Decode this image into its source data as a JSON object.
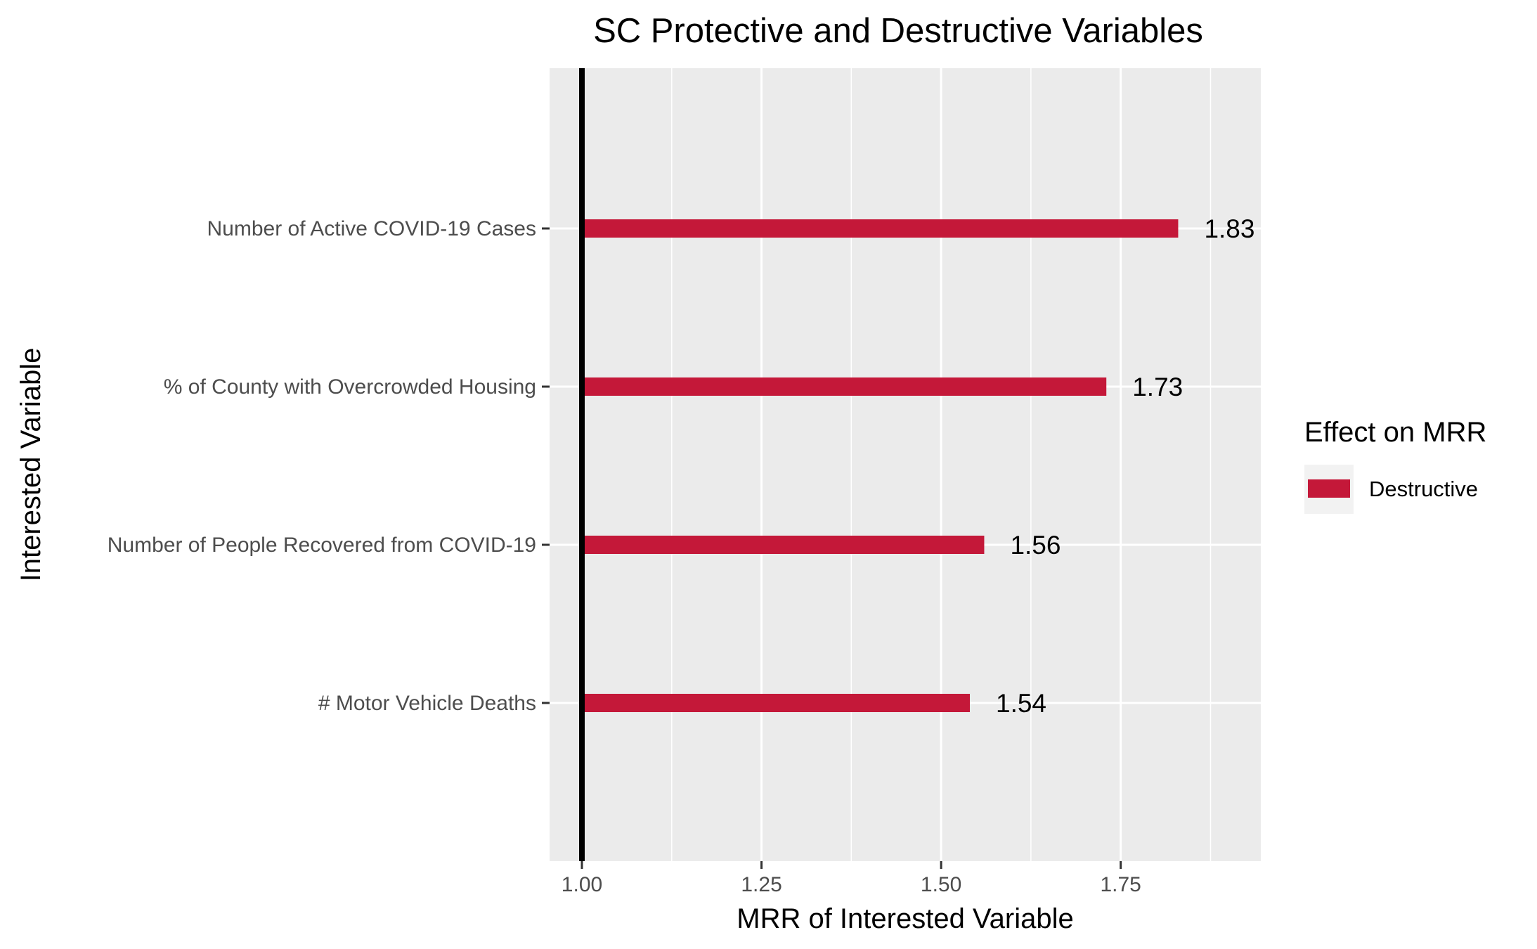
{
  "chart_data": {
    "type": "bar",
    "orientation": "horizontal",
    "title": "SC Protective and Destructive Variables",
    "xlabel": "MRR of Interested Variable",
    "ylabel": "Interested Variable",
    "categories": [
      "Number of Active COVID-19 Cases",
      "% of County with Overcrowded Housing",
      "Number of People Recovered from COVID-19",
      "# Motor Vehicle Deaths"
    ],
    "values": [
      1.83,
      1.73,
      1.56,
      1.54
    ],
    "data_labels": [
      "1.83",
      "1.73",
      "1.56",
      "1.54"
    ],
    "xlim": [
      0.955,
      1.945
    ],
    "x_ticks": [
      1.0,
      1.25,
      1.5,
      1.75
    ],
    "x_tick_labels": [
      "1.00",
      "1.25",
      "1.50",
      "1.75"
    ],
    "x_minor_gridlines": [
      1.125,
      1.375,
      1.625,
      1.875
    ],
    "reference_line": 1.0,
    "grid": true,
    "legend": {
      "title": "Effect on MRR",
      "position": "right",
      "entries": [
        {
          "label": "Destructive",
          "color": "#C41839"
        }
      ]
    },
    "colors": {
      "bar": "#C41839",
      "panel_background": "#EBEBEB",
      "gridline": "#FFFFFF",
      "reference_line": "#000000"
    }
  }
}
